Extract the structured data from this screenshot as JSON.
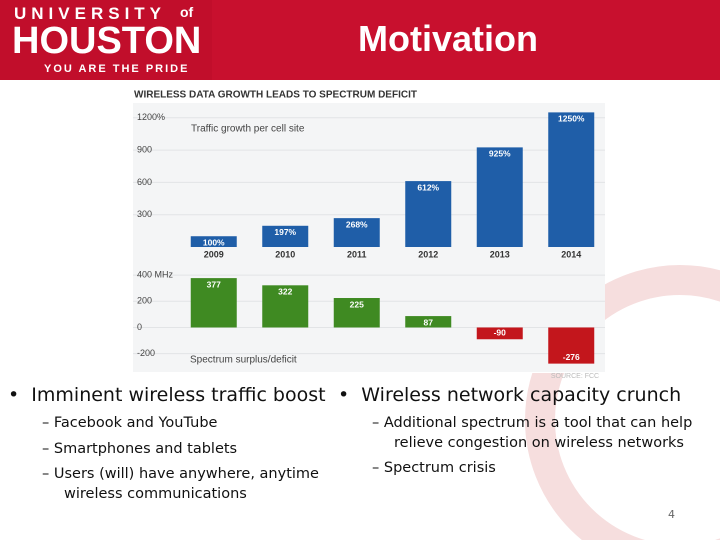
{
  "header": {
    "university": "UNIVERSITY",
    "of": "of",
    "name": "HOUSTON",
    "tagline": "YOU ARE THE PRIDE",
    "title": "Motivation"
  },
  "figure": {
    "title": "WIRELESS DATA GROWTH LEADS TO SPECTRUM DEFICIT",
    "source": "SOURCE: FCC",
    "charts": [
      {
        "type": "bar",
        "subtitle": "Traffic growth per cell site",
        "categories": [
          "2009",
          "2010",
          "2011",
          "2012",
          "2013",
          "2014"
        ],
        "values": [
          100,
          197,
          268,
          612,
          925,
          1250
        ],
        "value_labels": [
          "100%",
          "197%",
          "268%",
          "612%",
          "925%",
          "1250%"
        ],
        "color": "#1f5ea8",
        "ylim": [
          0,
          1300
        ],
        "yticks": [
          {
            "value": 1200,
            "label": "1200%"
          },
          900,
          600,
          300
        ]
      },
      {
        "type": "bar",
        "subtitle": "Spectrum surplus/deficit",
        "values": [
          377,
          322,
          225,
          87,
          -90,
          -276
        ],
        "positive_color": "#3f8a22",
        "negative_color": "#c3161c",
        "ylim": [
          -340,
          500
        ],
        "yticks": [
          {
            "value": 400,
            "label": "400 MHz"
          },
          200,
          0,
          -200
        ]
      }
    ]
  },
  "bullets": [
    {
      "text": "Imminent wireless traffic boost",
      "items": [
        "Facebook and YouTube",
        "Smartphones and tablets",
        "Users (will) have anywhere, anytime wireless communications"
      ]
    },
    {
      "text": "Wireless network capacity crunch",
      "items": [
        "Additional spectrum is a tool that can help relieve congestion on wireless networks",
        "Spectrum crisis"
      ]
    }
  ],
  "page_number": 4
}
